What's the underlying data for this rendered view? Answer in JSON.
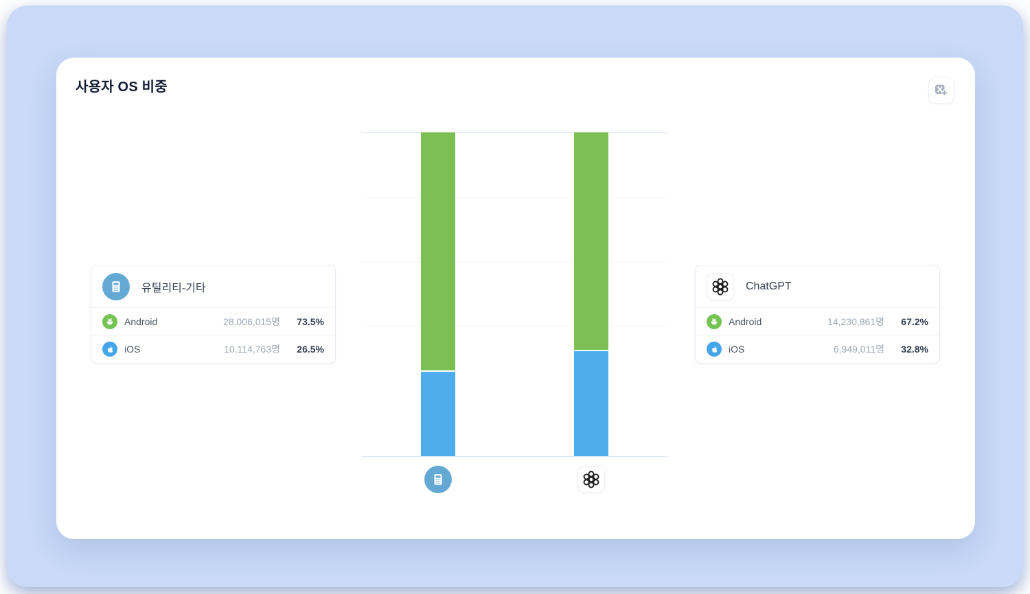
{
  "page_title": "사용자 OS 비중",
  "toolbar": {
    "export_button_icon": "excel-export-icon"
  },
  "icons": {
    "export": "excel-export-icon (gray spreadsheet square with X and down arrow)",
    "category_1": "calculator-icon on blue circle",
    "category_2": "openai-logo-icon on white tile",
    "android": "android-robot-icon on green circle",
    "ios": "apple-logo-icon on blue circle"
  },
  "colors": {
    "page_bg": "#ffffff",
    "panel_bg": "#c9d9f7",
    "card_bg": "#ffffff",
    "title_text": "#121b33",
    "android_green": "#7cc053",
    "ios_blue": "#4fadeb",
    "android_badge": "#74c353",
    "ios_badge": "#45a5e9",
    "calc_circle": "#64a9d4",
    "count_text": "#9ca8b4",
    "percent_text": "#333f50"
  },
  "chart_data": {
    "type": "bar",
    "stacked": true,
    "percent_scale": true,
    "title": "사용자 OS 비중",
    "categories": [
      "유틸리티-기타",
      "ChatGPT"
    ],
    "series": [
      {
        "name": "Android",
        "color": "#7cc053",
        "values": [
          73.5,
          67.2
        ]
      },
      {
        "name": "iOS",
        "color": "#4fadeb",
        "values": [
          26.5,
          32.8
        ]
      }
    ],
    "android_users": [
      "28,006,015명",
      "14,230,861명"
    ],
    "ios_users": [
      "10,114,763명",
      "6,949,011명"
    ],
    "xlabel": "",
    "ylabel": "",
    "ylim": [
      0,
      100
    ],
    "grid": true,
    "gridline_step_percent": 20,
    "tick_labels_hidden": true,
    "legend_position": "none",
    "category_axis_labels": "app icons"
  },
  "cards": [
    {
      "title": "유틸리티-기타",
      "icon": "calculator-icon",
      "rows": [
        {
          "os": "Android",
          "users": "28,006,015명",
          "percent": "73.5%"
        },
        {
          "os": "iOS",
          "users": "10,114,763명",
          "percent": "26.5%"
        }
      ]
    },
    {
      "title": "ChatGPT",
      "icon": "openai-logo-icon",
      "rows": [
        {
          "os": "Android",
          "users": "14,230,861명",
          "percent": "67.2%"
        },
        {
          "os": "iOS",
          "users": "6,949,011명",
          "percent": "32.8%"
        }
      ]
    }
  ]
}
